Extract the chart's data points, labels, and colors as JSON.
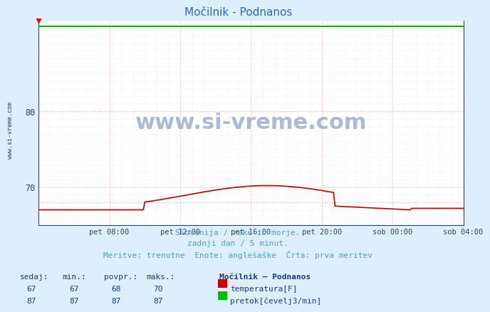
{
  "title": "Močilnik - Podnanos",
  "bg_color": "#ddeeff",
  "plot_bg_color": "#ffffff",
  "grid_color_major": "#ffaaaa",
  "grid_color_minor": "#e8e8f8",
  "xlim": [
    0,
    288
  ],
  "ylim": [
    65.5,
    92
  ],
  "yticks": [
    70,
    80
  ],
  "xtick_labels": [
    "pet 08:00",
    "pet 12:00",
    "pet 16:00",
    "pet 20:00",
    "sob 00:00",
    "sob 04:00"
  ],
  "xtick_positions": [
    48,
    96,
    144,
    192,
    240,
    288
  ],
  "temp_color": "#cc0000",
  "flow_color": "#00bb00",
  "avg_line_color": "#ffbbbb",
  "flow_value": 91.2,
  "avg_temp": 68.0,
  "subtitle1": "Slovenija / reke in morje.",
  "subtitle2": "zadnji dan / 5 minut.",
  "subtitle3": "Meritve: trenutne  Enote: anglešaške  Črta: prva meritev",
  "subtitle_color": "#5599cc",
  "table_header_labels": [
    "sedaj:",
    "min.:",
    "povpr.:",
    "maks.:",
    "Močilnik – Podnanos"
  ],
  "table_temp_vals": [
    "67",
    "67",
    "68",
    "70"
  ],
  "table_temp_label": "temperatura[F]",
  "table_temp_color": "#cc0000",
  "table_flow_vals": [
    "87",
    "87",
    "87",
    "87"
  ],
  "table_flow_label": "pretok[čevelj3/min]",
  "table_flow_color": "#00bb00",
  "watermark": "www.si-vreme.com",
  "watermark_color": "#1a3a8a",
  "watermark_alpha": 0.35,
  "left_label": "www.si-vreme.com",
  "left_label_color": "#1a3a8a",
  "title_color": "#3366bb",
  "tick_color": "#334466",
  "spine_color": "#334466"
}
